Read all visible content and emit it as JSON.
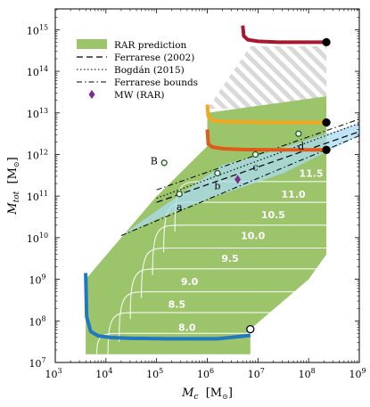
{
  "chart_data": {
    "type": "line",
    "xlabel": "M_c [M_⊙]",
    "ylabel": "M_tot [M_⊙]",
    "x_scale": "log",
    "y_scale": "log",
    "xlim_log10": [
      3,
      9
    ],
    "ylim_log10": [
      7,
      15.5
    ],
    "x_ticks": [
      {
        "exp": "3",
        "v": 3
      },
      {
        "exp": "4",
        "v": 4
      },
      {
        "exp": "5",
        "v": 5
      },
      {
        "exp": "6",
        "v": 6
      },
      {
        "exp": "7",
        "v": 7
      },
      {
        "exp": "8",
        "v": 8
      },
      {
        "exp": "9",
        "v": 9
      }
    ],
    "y_ticks": [
      {
        "exp": "7",
        "v": 7
      },
      {
        "exp": "8",
        "v": 8
      },
      {
        "exp": "9",
        "v": 9
      },
      {
        "exp": "10",
        "v": 10
      },
      {
        "exp": "11",
        "v": 11
      },
      {
        "exp": "12",
        "v": 12
      },
      {
        "exp": "13",
        "v": 13
      },
      {
        "exp": "14",
        "v": 14
      },
      {
        "exp": "15",
        "v": 15
      }
    ],
    "tick_base": "10",
    "xlabel_main": "M",
    "xlabel_sub": "c",
    "xlabel_unit": "[M",
    "xlabel_unit_sub": "⊙",
    "xlabel_close": "]",
    "ylabel_main": "M",
    "ylabel_sub": "tot",
    "ylabel_unit": "[M",
    "ylabel_unit_sub": "⊙",
    "ylabel_close": "]",
    "rar_region": [
      [
        3.6,
        7.2
      ],
      [
        3.6,
        9.0
      ],
      [
        5.0,
        11.0
      ],
      [
        5.05,
        11.05
      ],
      [
        6.0,
        12.2
      ],
      [
        6.0,
        13.0
      ],
      [
        8.35,
        13.4
      ],
      [
        8.35,
        12.0
      ],
      [
        8.35,
        9.6
      ],
      [
        8.0,
        9.0
      ],
      [
        6.85,
        7.8
      ],
      [
        6.85,
        7.2
      ]
    ],
    "hatch_region": [
      [
        6.0,
        13.1
      ],
      [
        6.85,
        14.6
      ],
      [
        8.35,
        14.6
      ],
      [
        8.35,
        13.1
      ]
    ],
    "band_region": [
      [
        6.3,
        11.75
      ],
      [
        7.2,
        12.05
      ],
      [
        9.0,
        12.75
      ],
      [
        9.0,
        12.45
      ],
      [
        7.5,
        11.55
      ],
      [
        6.3,
        11.05
      ],
      [
        5.2,
        10.55
      ],
      [
        4.3,
        10.05
      ]
    ],
    "contours": [
      {
        "label": "8.0",
        "level_mtot": 7.7,
        "lx": 5.6,
        "ly": 7.85
      },
      {
        "label": "8.5",
        "level_mtot": 8.2,
        "lx": 5.4,
        "ly": 8.4
      },
      {
        "label": "9.0",
        "level_mtot": 8.7,
        "lx": 5.65,
        "ly": 8.95
      },
      {
        "label": "9.5",
        "level_mtot": 9.25,
        "lx": 6.45,
        "ly": 9.5
      },
      {
        "label": "10.0",
        "level_mtot": 9.75,
        "lx": 6.9,
        "ly": 10.05
      },
      {
        "label": "10.5",
        "level_mtot": 10.3,
        "lx": 7.3,
        "ly": 10.55
      },
      {
        "label": "11.0",
        "level_mtot": 10.85,
        "lx": 7.7,
        "ly": 11.05
      },
      {
        "label": "11.5",
        "level_mtot": 11.35,
        "lx": 8.05,
        "ly": 11.55
      }
    ],
    "series": [
      {
        "name": "RAR prediction",
        "style": "fill",
        "color": "#9cc46a"
      },
      {
        "name": "Ferrarese (2002)",
        "style": "dashed",
        "color": "#000000",
        "x": [
          5.0,
          9.0
        ],
        "y": [
          10.85,
          12.55
        ]
      },
      {
        "name": "Bogdán (2015)",
        "style": "dotted",
        "color": "#000000",
        "x": [
          5.0,
          9.0
        ],
        "y": [
          10.95,
          12.75
        ]
      },
      {
        "name": "Ferrarese bounds",
        "style": "dashdot",
        "color": "#000000",
        "lines": [
          {
            "x": [
              4.3,
              9.0
            ],
            "y": [
              10.05,
              12.45
            ]
          },
          {
            "x": [
              5.0,
              9.0
            ],
            "y": [
              11.15,
              12.85
            ]
          }
        ]
      }
    ],
    "boundary_curves": [
      {
        "color": "#1f78c1",
        "x": [
          3.6,
          3.62,
          3.7,
          3.85,
          4.1,
          4.5,
          5.2,
          6.2,
          6.85
        ],
        "y": [
          9.15,
          8.1,
          7.74,
          7.64,
          7.6,
          7.58,
          7.57,
          7.57,
          7.65
        ]
      },
      {
        "color": "#e05a1a",
        "x": [
          6.0,
          6.02,
          6.1,
          6.3,
          6.7,
          7.3,
          8.35
        ],
        "y": [
          12.6,
          12.25,
          12.18,
          12.14,
          12.12,
          12.11,
          12.11
        ]
      },
      {
        "color": "#f2a81d",
        "x": [
          6.0,
          6.02,
          6.1,
          6.3,
          6.7,
          7.3,
          8.35
        ],
        "y": [
          13.2,
          12.92,
          12.82,
          12.79,
          12.78,
          12.77,
          12.77
        ]
      },
      {
        "color": "#a8172e",
        "x": [
          6.7,
          6.72,
          6.8,
          7.0,
          7.4,
          8.0,
          8.35
        ],
        "y": [
          15.1,
          14.85,
          14.76,
          14.72,
          14.7,
          14.7,
          14.7
        ]
      }
    ],
    "endpoints": [
      {
        "x": 8.35,
        "y": 14.7,
        "fill": "#000000"
      },
      {
        "x": 8.35,
        "y": 12.77,
        "fill": "#000000"
      },
      {
        "x": 8.35,
        "y": 12.11,
        "fill": "#000000"
      },
      {
        "x": 6.85,
        "y": 7.8,
        "fill": "#ffffff"
      }
    ],
    "data_points": [
      {
        "name": "a",
        "x": 5.45,
        "y": 11.05,
        "lx": 5.45,
        "ly": 10.75
      },
      {
        "name": "b",
        "x": 6.2,
        "y": 11.55,
        "lx": 6.2,
        "ly": 11.25
      },
      {
        "name": "c",
        "x": 6.95,
        "y": 12.0,
        "lx": 6.95,
        "ly": 11.7
      },
      {
        "name": "d",
        "x": 7.8,
        "y": 12.5,
        "lx": 7.85,
        "ly": 12.2
      },
      {
        "name": "B",
        "x": 5.15,
        "y": 11.8,
        "lx": 4.95,
        "ly": 11.85
      }
    ],
    "mw_point": {
      "label": "MW (RAR)",
      "x": 6.6,
      "y": 11.4,
      "color": "#7b2d8e"
    },
    "legend": {
      "position": "upper-left",
      "items": [
        "RAR prediction",
        "Ferrarese (2002)",
        "Bogdán (2015)",
        "Ferrarese bounds",
        "MW (RAR)"
      ]
    }
  }
}
